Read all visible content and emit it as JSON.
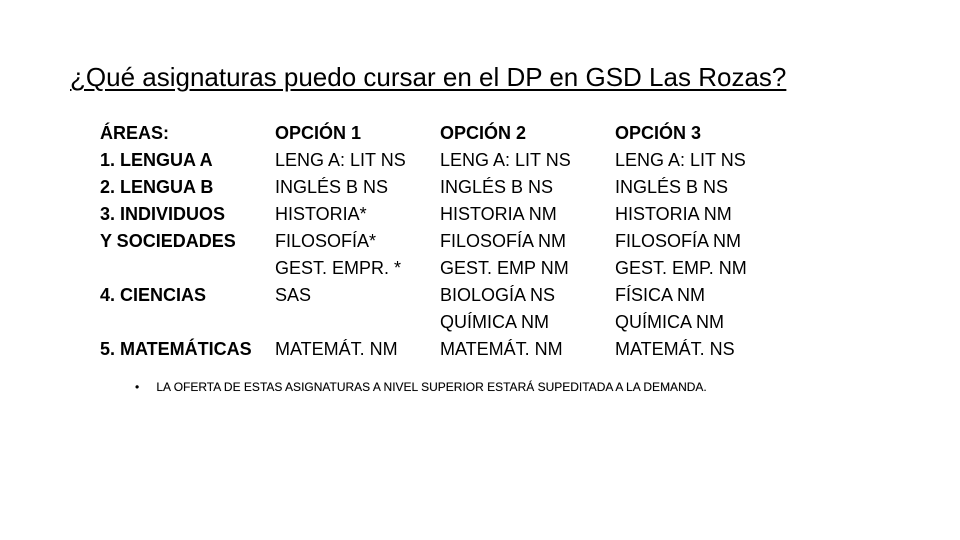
{
  "title": "¿Qué asignaturas puedo cursar en el DP en GSD Las Rozas?",
  "columns": {
    "areas": {
      "header": "ÁREAS:",
      "rows": [
        "1. LENGUA A",
        "2. LENGUA B",
        "3. INDIVIDUOS",
        "Y SOCIEDADES",
        "",
        "4. CIENCIAS",
        "",
        "5. MATEMÁTICAS"
      ]
    },
    "opt1": {
      "header": "OPCIÓN 1",
      "rows": [
        "LENG A: LIT NS",
        "INGLÉS B NS",
        "HISTORIA*",
        "FILOSOFÍA*",
        "GEST. EMPR. *",
        "SAS",
        "",
        "MATEMÁT. NM"
      ]
    },
    "opt2": {
      "header": "OPCIÓN 2",
      "rows": [
        "LENG A: LIT NS",
        "INGLÉS B NS",
        "HISTORIA NM",
        "FILOSOFÍA NM",
        "GEST. EMP NM",
        "BIOLOGÍA NS",
        "QUÍMICA NM",
        "MATEMÁT. NM"
      ]
    },
    "opt3": {
      "header": "OPCIÓN 3",
      "rows": [
        "LENG A: LIT NS",
        "INGLÉS B NS",
        "HISTORIA NM",
        "FILOSOFÍA NM",
        "GEST. EMP. NM",
        "FÍSICA NM",
        "QUÍMICA NM",
        "MATEMÁT. NS"
      ]
    }
  },
  "footnote": "LA OFERTA DE ESTAS ASIGNATURAS A NIVEL SUPERIOR ESTARÁ SUPEDITADA A LA DEMANDA.",
  "bullet": "•",
  "style": {
    "background_color": "#ffffff",
    "text_color": "#000000",
    "title_fontsize": 26,
    "body_fontsize": 18,
    "footnote_fontsize": 12,
    "layout": {
      "columns": 4,
      "col0_bold": true
    }
  }
}
